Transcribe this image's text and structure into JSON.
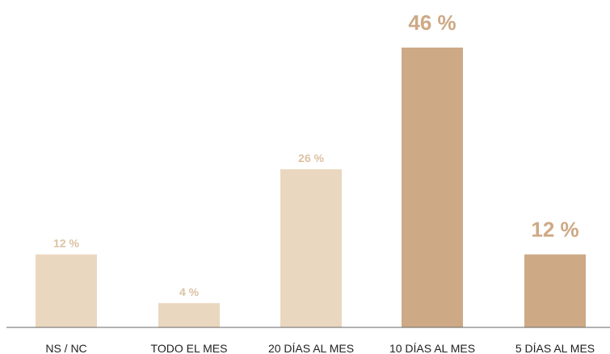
{
  "chart_data": {
    "type": "bar",
    "categories": [
      "NS / NC",
      "TODO EL MES",
      "20 DÍAS AL MES",
      "10 DÍAS AL MES",
      "5 DÍAS AL MES"
    ],
    "values": [
      12,
      4,
      26,
      46,
      12
    ],
    "data_labels": [
      "12 %",
      "4 %",
      "26 %",
      "46 %",
      "12 %"
    ],
    "highlighted": [
      false,
      false,
      false,
      true,
      true
    ],
    "title": "",
    "xlabel": "",
    "ylabel": "",
    "ylim": [
      0,
      50
    ],
    "grid": false,
    "legend": "none",
    "colors": {
      "bar_light": "#EAD7C0",
      "bar_dark": "#CDA985",
      "label_light": "#DDC2A2",
      "label_dark": "#CDA985",
      "axis": "#666666",
      "category_text": "#1f1f1f"
    }
  }
}
